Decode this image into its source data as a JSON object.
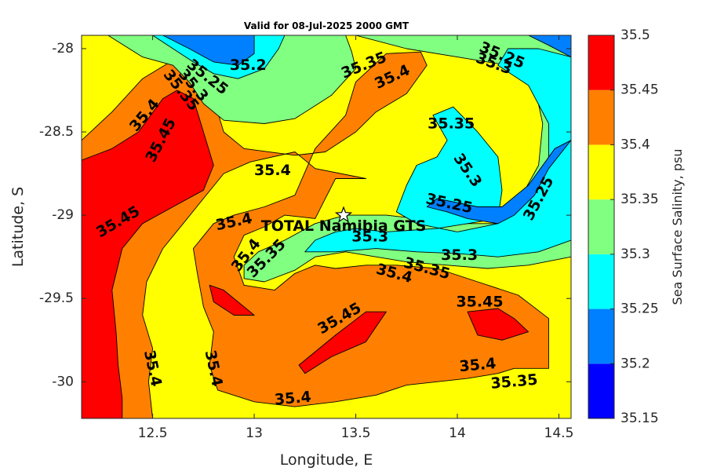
{
  "chart_data": {
    "type": "contourf",
    "title": "Valid for 08-Jul-2025 2000 GMT",
    "xlabel": "Longitude, E",
    "ylabel": "Latitude, S",
    "xlim": [
      12.15,
      14.56
    ],
    "ylim": [
      -30.22,
      -27.92
    ],
    "xticks": [
      12.5,
      13,
      13.5,
      14,
      14.5
    ],
    "xtick_labels": [
      "12.5",
      "13",
      "13.5",
      "14",
      "14.5"
    ],
    "yticks": [
      -28,
      -28.5,
      -29,
      -29.5,
      -30
    ],
    "ytick_labels": [
      "-28",
      "-28.5",
      "-29",
      "-29.5",
      "-30"
    ],
    "colorbar": {
      "label": "Sea Surface Salinity, psu",
      "levels": [
        35.15,
        35.2,
        35.25,
        35.3,
        35.35,
        35.4,
        35.45,
        35.5
      ],
      "level_labels": [
        "35.15",
        "35.2",
        "35.25",
        "35.3",
        "35.35",
        "35.4",
        "35.45",
        "35.5"
      ],
      "colors": [
        "#0000ff",
        "#0080ff",
        "#00ffff",
        "#80ff80",
        "#ffff00",
        "#ff8000",
        "#ff0000"
      ]
    },
    "background_level": 35.35,
    "regions": [
      {
        "level": 35.4,
        "points": [
          [
            12.15,
            -28.55
          ],
          [
            12.3,
            -28.38
          ],
          [
            12.45,
            -28.18
          ],
          [
            12.6,
            -28.07
          ],
          [
            12.72,
            -28.1
          ],
          [
            12.8,
            -28.3
          ],
          [
            12.85,
            -28.5
          ],
          [
            12.95,
            -28.6
          ],
          [
            13.2,
            -28.64
          ],
          [
            13.35,
            -28.62
          ],
          [
            13.5,
            -28.5
          ],
          [
            13.6,
            -28.38
          ],
          [
            13.75,
            -28.27
          ],
          [
            13.85,
            -28.1
          ],
          [
            13.82,
            -28.02
          ],
          [
            13.65,
            -28.03
          ],
          [
            13.5,
            -28.2
          ],
          [
            13.45,
            -28.4
          ],
          [
            13.3,
            -28.6
          ],
          [
            13.2,
            -28.88
          ],
          [
            13.05,
            -28.95
          ],
          [
            12.9,
            -29.0
          ],
          [
            12.8,
            -29.05
          ],
          [
            12.7,
            -29.2
          ],
          [
            12.72,
            -29.35
          ],
          [
            12.75,
            -29.55
          ],
          [
            12.8,
            -29.7
          ],
          [
            12.78,
            -29.9
          ],
          [
            12.82,
            -30.05
          ],
          [
            13.0,
            -30.12
          ],
          [
            13.2,
            -30.15
          ],
          [
            13.4,
            -30.12
          ],
          [
            13.6,
            -30.08
          ],
          [
            13.75,
            -30.02
          ],
          [
            13.9,
            -30.0
          ],
          [
            14.05,
            -29.98
          ],
          [
            14.2,
            -29.95
          ],
          [
            14.28,
            -29.92
          ],
          [
            14.45,
            -29.92
          ],
          [
            14.45,
            -29.62
          ],
          [
            14.3,
            -29.48
          ],
          [
            14.1,
            -29.4
          ],
          [
            13.9,
            -29.32
          ],
          [
            13.7,
            -29.3
          ],
          [
            13.55,
            -29.3
          ],
          [
            13.4,
            -29.32
          ],
          [
            13.3,
            -29.3
          ],
          [
            13.2,
            -29.35
          ],
          [
            13.1,
            -29.45
          ],
          [
            12.95,
            -29.42
          ],
          [
            12.9,
            -29.25
          ],
          [
            12.95,
            -29.12
          ],
          [
            13.05,
            -29.07
          ],
          [
            13.15,
            -29.0
          ],
          [
            13.3,
            -29.02
          ],
          [
            13.35,
            -28.9
          ],
          [
            13.4,
            -28.78
          ],
          [
            13.55,
            -28.78
          ],
          [
            13.3,
            -28.72
          ],
          [
            13.2,
            -28.62
          ],
          [
            12.98,
            -28.68
          ],
          [
            12.85,
            -28.75
          ],
          [
            12.75,
            -28.9
          ],
          [
            12.65,
            -29.05
          ],
          [
            12.55,
            -29.2
          ],
          [
            12.47,
            -29.4
          ],
          [
            12.45,
            -29.6
          ],
          [
            12.5,
            -29.8
          ],
          [
            12.48,
            -30.0
          ],
          [
            12.5,
            -30.22
          ],
          [
            12.15,
            -30.22
          ]
        ]
      },
      {
        "level": 35.45,
        "points": [
          [
            12.15,
            -28.67
          ],
          [
            12.3,
            -28.6
          ],
          [
            12.43,
            -28.5
          ],
          [
            12.55,
            -28.3
          ],
          [
            12.62,
            -28.25
          ],
          [
            12.7,
            -28.3
          ],
          [
            12.75,
            -28.5
          ],
          [
            12.8,
            -28.7
          ],
          [
            12.75,
            -28.85
          ],
          [
            12.6,
            -28.95
          ],
          [
            12.45,
            -29.05
          ],
          [
            12.35,
            -29.2
          ],
          [
            12.3,
            -29.45
          ],
          [
            12.32,
            -29.7
          ],
          [
            12.33,
            -29.9
          ],
          [
            12.35,
            -30.1
          ],
          [
            12.35,
            -30.22
          ],
          [
            12.15,
            -30.22
          ]
        ]
      },
      {
        "level": 35.45,
        "points": [
          [
            13.22,
            -29.9
          ],
          [
            13.4,
            -29.72
          ],
          [
            13.55,
            -29.58
          ],
          [
            13.65,
            -29.58
          ],
          [
            13.6,
            -29.67
          ],
          [
            13.55,
            -29.76
          ],
          [
            13.38,
            -29.85
          ],
          [
            13.25,
            -29.95
          ]
        ]
      },
      {
        "level": 35.45,
        "points": [
          [
            12.78,
            -29.42
          ],
          [
            12.85,
            -29.45
          ],
          [
            12.95,
            -29.55
          ],
          [
            13.0,
            -29.6
          ],
          [
            12.9,
            -29.6
          ],
          [
            12.8,
            -29.52
          ]
        ]
      },
      {
        "level": 35.45,
        "points": [
          [
            14.05,
            -29.58
          ],
          [
            14.2,
            -29.56
          ],
          [
            14.28,
            -29.62
          ],
          [
            14.35,
            -29.7
          ],
          [
            14.22,
            -29.75
          ],
          [
            14.1,
            -29.72
          ]
        ]
      },
      {
        "level": 35.3,
        "points": [
          [
            12.28,
            -27.92
          ],
          [
            12.45,
            -28.05
          ],
          [
            12.6,
            -28.1
          ],
          [
            12.68,
            -28.2
          ],
          [
            12.75,
            -28.33
          ],
          [
            12.85,
            -28.43
          ],
          [
            13.05,
            -28.45
          ],
          [
            13.2,
            -28.42
          ],
          [
            13.38,
            -28.28
          ],
          [
            13.5,
            -28.12
          ],
          [
            13.48,
            -28.02
          ],
          [
            13.45,
            -27.92
          ]
        ]
      },
      {
        "level": 35.25,
        "points": [
          [
            12.5,
            -27.92
          ],
          [
            12.6,
            -28.0
          ],
          [
            12.7,
            -28.08
          ],
          [
            12.8,
            -28.15
          ],
          [
            12.92,
            -28.18
          ],
          [
            13.05,
            -28.12
          ],
          [
            13.12,
            -28.0
          ],
          [
            13.15,
            -27.92
          ]
        ]
      },
      {
        "level": 35.2,
        "points": [
          [
            12.55,
            -27.92
          ],
          [
            12.68,
            -28.0
          ],
          [
            12.8,
            -28.08
          ],
          [
            12.92,
            -28.1
          ],
          [
            13.0,
            -28.03
          ],
          [
            13.0,
            -27.92
          ]
        ]
      },
      {
        "level": 35.3,
        "points": [
          [
            13.5,
            -27.92
          ],
          [
            13.75,
            -28.0
          ],
          [
            14.0,
            -28.05
          ],
          [
            14.25,
            -28.1
          ],
          [
            14.38,
            -28.22
          ],
          [
            14.42,
            -28.45
          ],
          [
            14.4,
            -28.7
          ],
          [
            14.3,
            -28.92
          ],
          [
            14.2,
            -29.05
          ],
          [
            14.0,
            -29.05
          ],
          [
            13.8,
            -29.02
          ],
          [
            13.65,
            -29.0
          ],
          [
            13.45,
            -29.0
          ],
          [
            13.3,
            -29.05
          ],
          [
            13.15,
            -29.15
          ],
          [
            13.02,
            -29.22
          ],
          [
            12.95,
            -29.3
          ],
          [
            12.95,
            -29.38
          ],
          [
            13.05,
            -29.4
          ],
          [
            13.2,
            -29.33
          ],
          [
            13.3,
            -29.25
          ],
          [
            13.45,
            -29.22
          ],
          [
            13.6,
            -29.25
          ],
          [
            13.75,
            -29.28
          ],
          [
            13.95,
            -29.3
          ],
          [
            14.15,
            -29.32
          ],
          [
            14.35,
            -29.3
          ],
          [
            14.56,
            -29.25
          ],
          [
            14.56,
            -27.92
          ]
        ]
      },
      {
        "level": 35.25,
        "points": [
          [
            14.56,
            -28.05
          ],
          [
            14.4,
            -28.0
          ],
          [
            14.25,
            -28.0
          ],
          [
            14.2,
            -28.1
          ],
          [
            14.35,
            -28.22
          ],
          [
            14.45,
            -28.45
          ],
          [
            14.45,
            -28.65
          ],
          [
            14.35,
            -28.88
          ],
          [
            14.2,
            -29.05
          ],
          [
            14.0,
            -29.1
          ],
          [
            13.8,
            -29.05
          ],
          [
            13.7,
            -28.98
          ],
          [
            13.75,
            -28.82
          ],
          [
            13.8,
            -28.7
          ],
          [
            13.9,
            -28.65
          ],
          [
            13.95,
            -28.55
          ],
          [
            13.88,
            -28.4
          ],
          [
            13.98,
            -28.35
          ],
          [
            14.1,
            -28.5
          ],
          [
            14.2,
            -28.65
          ],
          [
            14.22,
            -28.85
          ],
          [
            14.2,
            -29.02
          ],
          [
            14.05,
            -29.05
          ],
          [
            13.9,
            -29.08
          ],
          [
            13.65,
            -29.1
          ],
          [
            13.5,
            -29.08
          ],
          [
            13.4,
            -29.1
          ],
          [
            13.3,
            -29.15
          ],
          [
            13.25,
            -29.22
          ],
          [
            13.4,
            -29.22
          ],
          [
            13.6,
            -29.2
          ],
          [
            13.8,
            -29.22
          ],
          [
            14.0,
            -29.23
          ],
          [
            14.2,
            -29.25
          ],
          [
            14.4,
            -29.22
          ],
          [
            14.56,
            -29.15
          ]
        ]
      },
      {
        "level": 35.2,
        "points": [
          [
            14.56,
            -28.55
          ],
          [
            14.45,
            -28.72
          ],
          [
            14.38,
            -28.88
          ],
          [
            14.28,
            -29.0
          ],
          [
            14.2,
            -29.05
          ],
          [
            14.05,
            -29.02
          ],
          [
            13.95,
            -28.98
          ],
          [
            13.85,
            -28.95
          ],
          [
            13.9,
            -28.9
          ],
          [
            14.1,
            -28.95
          ],
          [
            14.22,
            -28.95
          ],
          [
            14.35,
            -28.82
          ],
          [
            14.48,
            -28.6
          ]
        ]
      },
      {
        "level": 35.2,
        "points": [
          [
            14.35,
            -27.92
          ],
          [
            14.45,
            -27.98
          ],
          [
            14.56,
            -28.05
          ],
          [
            14.56,
            -27.92
          ]
        ]
      }
    ],
    "contour_labels": [
      {
        "text": "35.2",
        "x": 12.97,
        "y": -28.1,
        "angle": 0
      },
      {
        "text": "35.25",
        "x": 12.77,
        "y": -28.17,
        "angle": 38
      },
      {
        "text": "35.3",
        "x": 12.7,
        "y": -28.22,
        "angle": 50
      },
      {
        "text": "35.35",
        "x": 12.64,
        "y": -28.25,
        "angle": 52
      },
      {
        "text": "35.35",
        "x": 13.54,
        "y": -28.1,
        "angle": -22
      },
      {
        "text": "35.4",
        "x": 13.68,
        "y": -28.17,
        "angle": -25
      },
      {
        "text": "35.25",
        "x": 14.22,
        "y": -28.04,
        "angle": 22
      },
      {
        "text": "35.3",
        "x": 14.18,
        "y": -28.09,
        "angle": 20
      },
      {
        "text": "35.4",
        "x": 12.46,
        "y": -28.4,
        "angle": -50
      },
      {
        "text": "35.45",
        "x": 12.54,
        "y": -28.55,
        "angle": -62
      },
      {
        "text": "35.35",
        "x": 13.97,
        "y": -28.45,
        "angle": 0
      },
      {
        "text": "35.4",
        "x": 13.09,
        "y": -28.73,
        "angle": 0
      },
      {
        "text": "35.3",
        "x": 14.05,
        "y": -28.73,
        "angle": 55
      },
      {
        "text": "35.25",
        "x": 14.4,
        "y": -28.9,
        "angle": -62
      },
      {
        "text": "35.25",
        "x": 13.96,
        "y": -28.93,
        "angle": 12
      },
      {
        "text": "35.45",
        "x": 12.33,
        "y": -29.04,
        "angle": -30
      },
      {
        "text": "35.4",
        "x": 12.9,
        "y": -29.04,
        "angle": -12
      },
      {
        "text": "35.4",
        "x": 12.96,
        "y": -29.24,
        "angle": -52
      },
      {
        "text": "35.35",
        "x": 13.06,
        "y": -29.26,
        "angle": -45
      },
      {
        "text": "35.3",
        "x": 13.57,
        "y": -29.13,
        "angle": 0
      },
      {
        "text": "35.3",
        "x": 14.01,
        "y": -29.24,
        "angle": 0
      },
      {
        "text": "35.4",
        "x": 13.69,
        "y": -29.35,
        "angle": 15
      },
      {
        "text": "35.35",
        "x": 13.85,
        "y": -29.32,
        "angle": 15
      },
      {
        "text": "35.45",
        "x": 13.42,
        "y": -29.62,
        "angle": -30
      },
      {
        "text": "35.45",
        "x": 14.11,
        "y": -29.52,
        "angle": 0
      },
      {
        "text": "35.4",
        "x": 12.5,
        "y": -29.92,
        "angle": 78
      },
      {
        "text": "35.4",
        "x": 12.8,
        "y": -29.92,
        "angle": 78
      },
      {
        "text": "35.4",
        "x": 14.1,
        "y": -29.9,
        "angle": -5
      },
      {
        "text": "35.35",
        "x": 14.28,
        "y": -30.0,
        "angle": -5
      },
      {
        "text": "35.4",
        "x": 13.19,
        "y": -30.1,
        "angle": -5
      }
    ],
    "annotations": [
      {
        "text": "TOTAL Namibia GTS",
        "x": 13.44,
        "y": -29.0,
        "marker": "star"
      }
    ]
  }
}
